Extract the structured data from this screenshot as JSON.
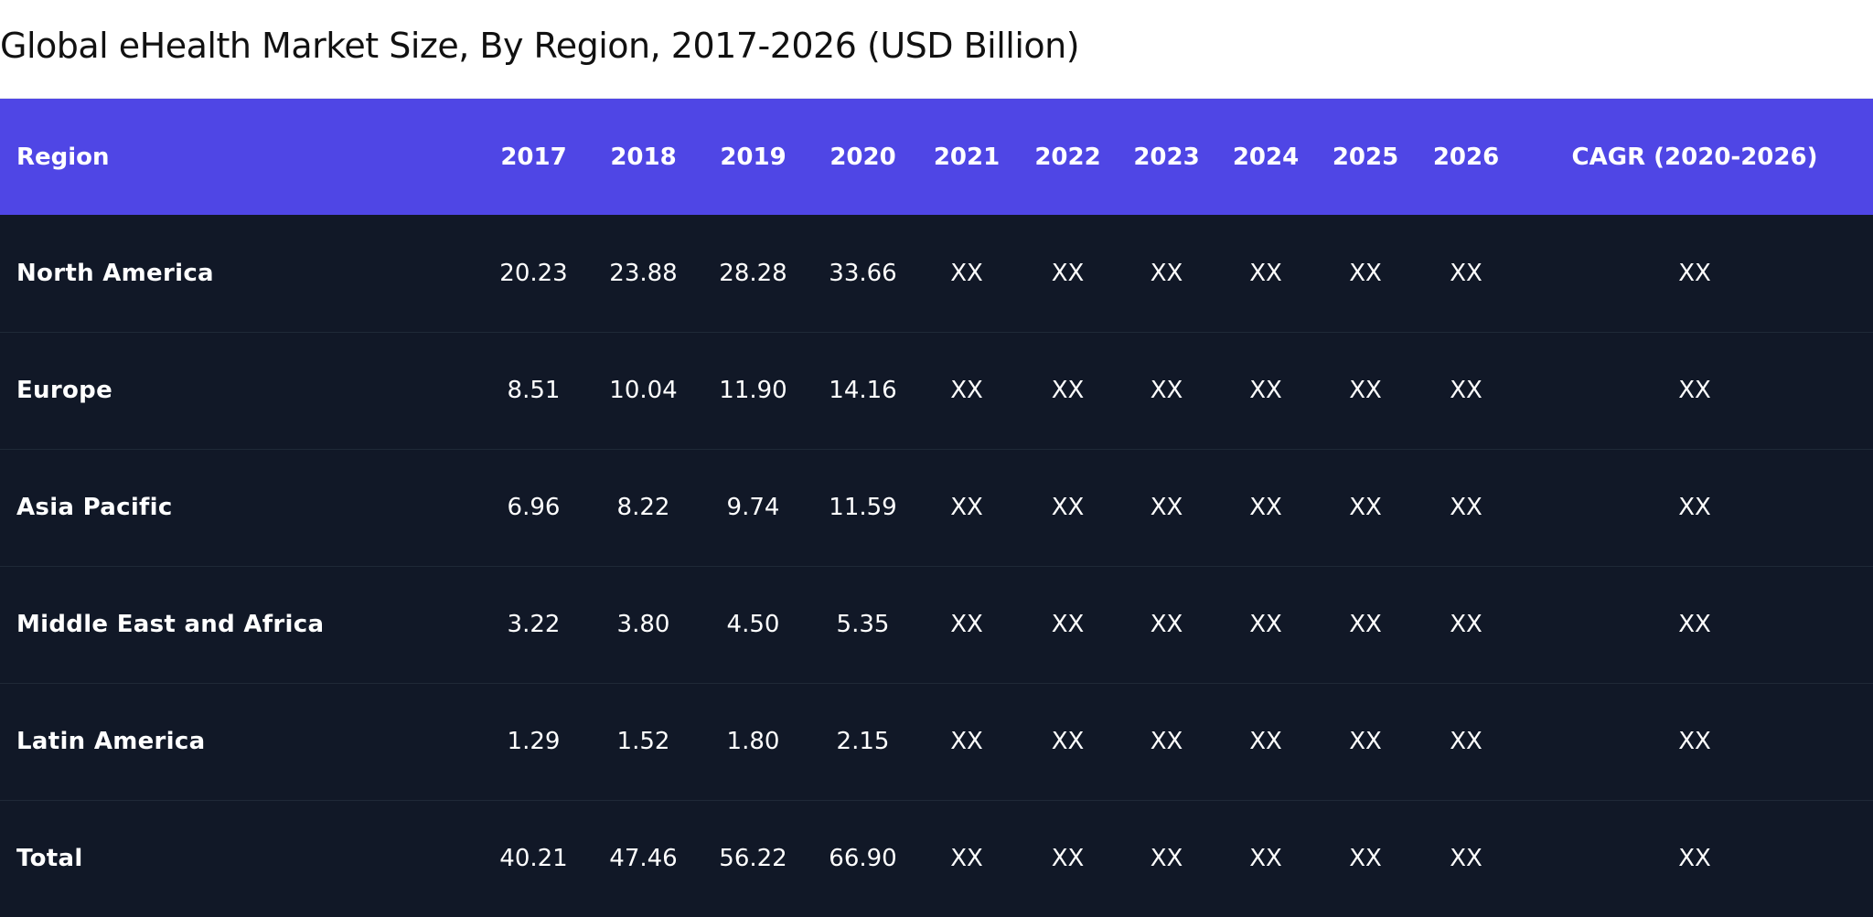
{
  "title": "Global eHealth Market Size, By Region, 2017-2026 (USD Billion)",
  "table": {
    "headers": [
      "Region",
      "2017",
      "2018",
      "2019",
      "2020",
      "2021",
      "2022",
      "2023",
      "2024",
      "2025",
      "2026",
      "CAGR (2020-2026)"
    ],
    "rows": [
      [
        "North America",
        "20.23",
        "23.88",
        "28.28",
        "33.66",
        "XX",
        "XX",
        "XX",
        "XX",
        "XX",
        "XX",
        "XX"
      ],
      [
        "Europe",
        "8.51",
        "10.04",
        "11.90",
        "14.16",
        "XX",
        "XX",
        "XX",
        "XX",
        "XX",
        "XX",
        "XX"
      ],
      [
        "Asia Pacific",
        "6.96",
        "8.22",
        "9.74",
        "11.59",
        "XX",
        "XX",
        "XX",
        "XX",
        "XX",
        "XX",
        "XX"
      ],
      [
        "Middle East and Africa",
        "3.22",
        "3.80",
        "4.50",
        "5.35",
        "XX",
        "XX",
        "XX",
        "XX",
        "XX",
        "XX",
        "XX"
      ],
      [
        "Latin America",
        "1.29",
        "1.52",
        "1.80",
        "2.15",
        "XX",
        "XX",
        "XX",
        "XX",
        "XX",
        "XX",
        "XX"
      ],
      [
        "Total",
        "40.21",
        "47.46",
        "56.22",
        "66.90",
        "XX",
        "XX",
        "XX",
        "XX",
        "XX",
        "XX",
        "XX"
      ]
    ]
  },
  "colors": {
    "header_bg": "#4f46e5",
    "body_bg": "#111827",
    "text": "#ffffff",
    "title_text": "#111111"
  }
}
